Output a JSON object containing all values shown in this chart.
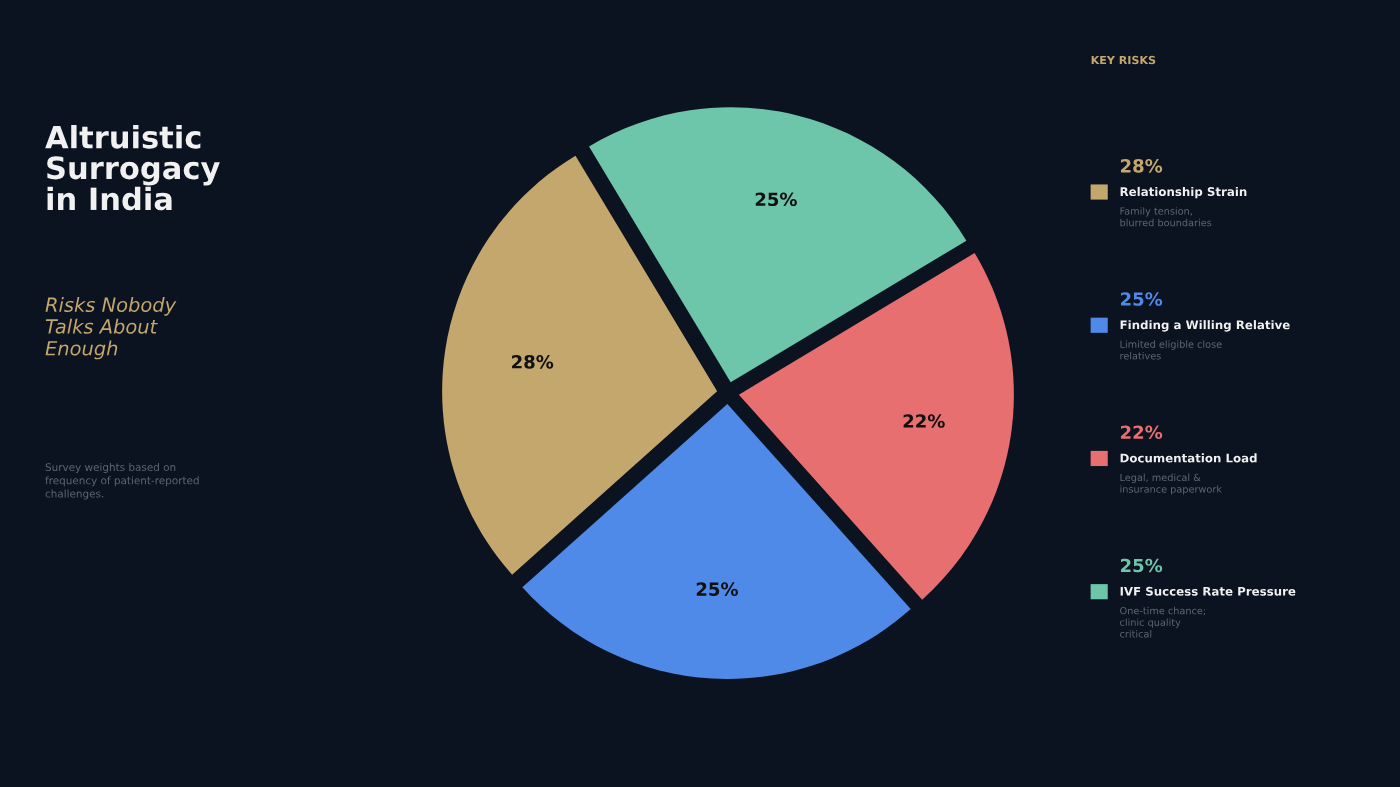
{
  "chart_data": {
    "type": "pie",
    "title": "Altruistic Surrogacy in India",
    "subtitle": "Risks Nobody Talks About Enough",
    "legend_title": "KEY RISKS",
    "categories": [
      "Relationship Strain",
      "Finding a Willing Relative",
      "Documentation Load",
      "IVF Success Rate Pressure"
    ],
    "values": [
      28,
      25,
      22,
      25
    ],
    "colors": [
      "#c4a76c",
      "#4f8ae8",
      "#e76f6f",
      "#6dc6aa"
    ],
    "value_labels": [
      "28%",
      "25%",
      "22%",
      "25%"
    ],
    "data_labels": true,
    "legend": "right",
    "annotations": [
      "Family tension, blurred boundaries",
      "Limited eligible close relatives",
      "Legal, medical & insurance paperwork",
      "One-time chance; clinic quality critical",
      "Survey weights based on frequency of patient-reported challenges."
    ]
  }
}
